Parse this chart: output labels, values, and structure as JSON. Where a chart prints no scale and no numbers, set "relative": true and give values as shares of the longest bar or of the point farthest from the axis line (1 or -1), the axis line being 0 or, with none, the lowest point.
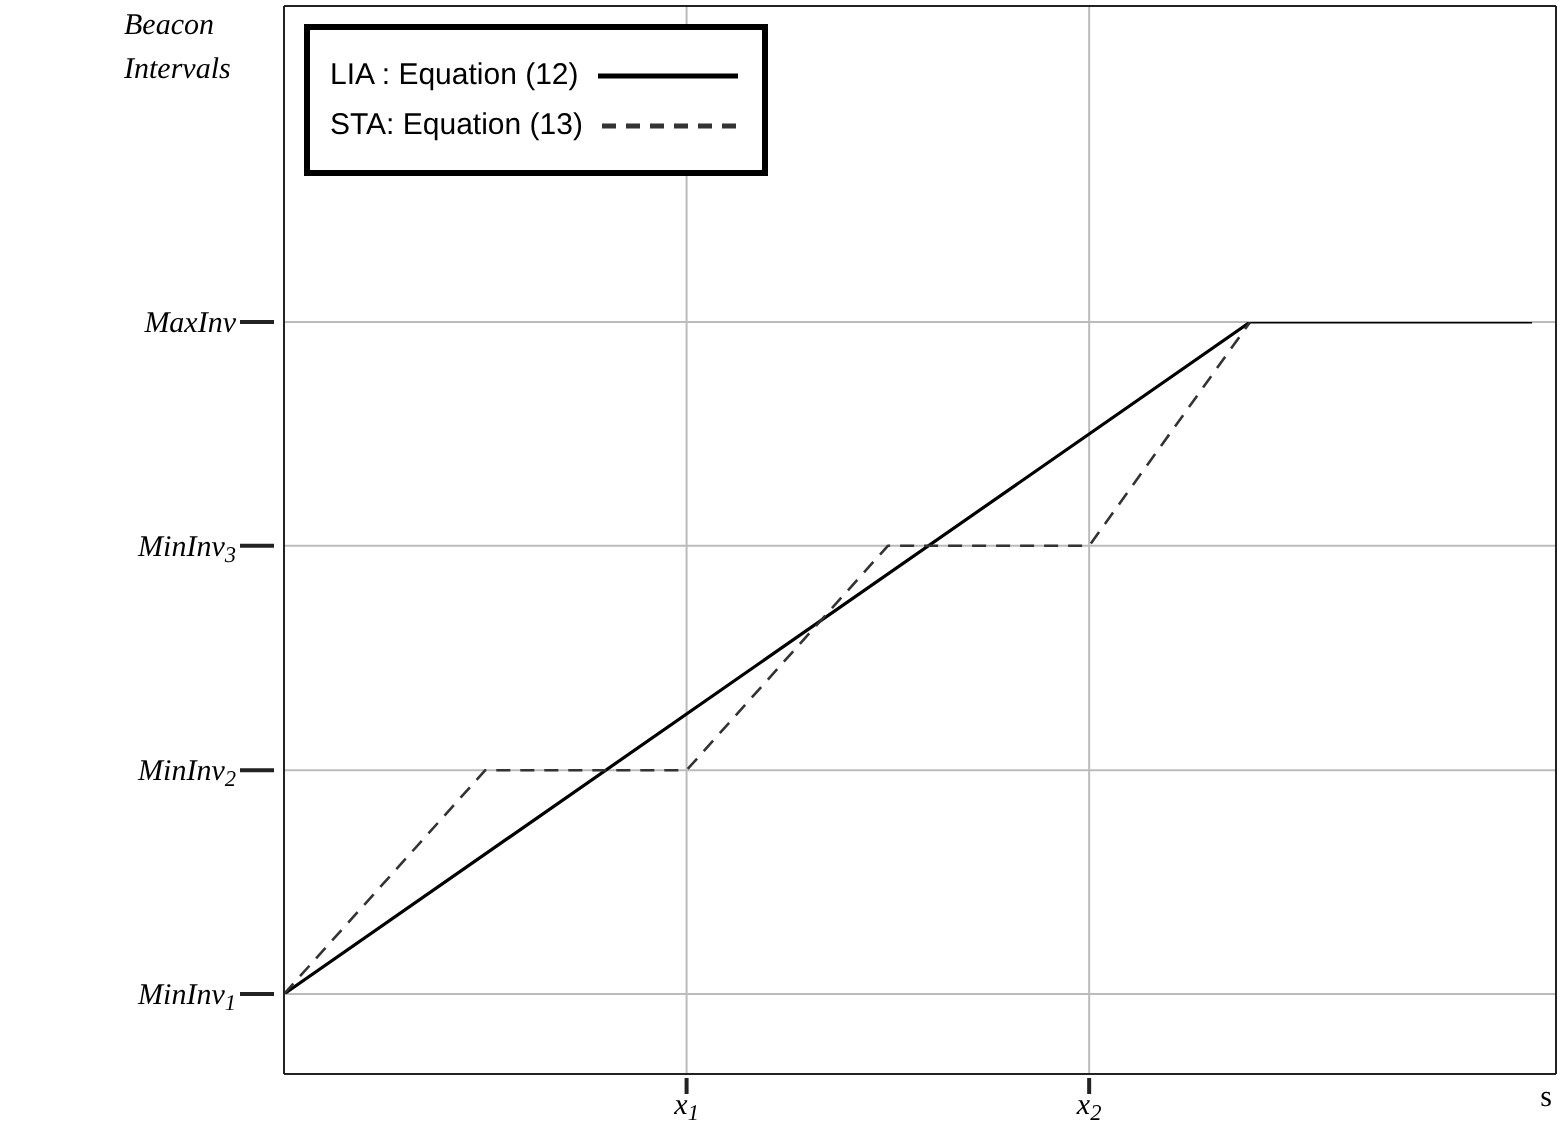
{
  "chart_data": {
    "type": "line",
    "relative": true,
    "annotations": [
      "Beacon Intervals"
    ],
    "xlabel": "s",
    "categories": [
      null,
      null,
      null,
      null,
      null,
      null,
      null,
      null,
      null,
      null,
      "x$_{1}$",
      null,
      null,
      null,
      null,
      null,
      null,
      null,
      null,
      null,
      "x$_{2}$",
      null,
      null,
      null,
      null,
      null,
      null,
      null,
      null,
      null,
      null,
      null
    ],
    "ref_lines": [
      {
        "axis": "y",
        "value": 0,
        "label": "MinInv$_{1}$"
      },
      {
        "axis": "y",
        "value": 0.333,
        "label": "MinInv$_{2}$"
      },
      {
        "axis": "y",
        "value": 0.667,
        "label": "MinInv$_{3}$"
      },
      {
        "axis": "y",
        "value": 1,
        "label": "MaxInv"
      },
      {
        "axis": "x",
        "value": "x$_{1}$"
      },
      {
        "axis": "x",
        "value": "x$_{2}$"
      }
    ],
    "legend": "top left",
    "series": [
      {
        "name": "LIA : Equation (12)",
        "color": "#000000",
        "line_style": "solid",
        "values": [
          0,
          null,
          null,
          null,
          null,
          null,
          null,
          null,
          null,
          null,
          null,
          null,
          null,
          null,
          null,
          null,
          null,
          null,
          null,
          null,
          null,
          null,
          null,
          null,
          1,
          null,
          null,
          null,
          null,
          null,
          null,
          1
        ]
      },
      {
        "name": "STA: Equation (13)",
        "color": "#333333",
        "line_style": "dashed",
        "values": [
          0,
          null,
          null,
          null,
          null,
          0.333,
          null,
          null,
          null,
          null,
          0.333,
          null,
          null,
          null,
          null,
          0.667,
          null,
          null,
          null,
          null,
          0.667,
          null,
          null,
          null,
          1,
          null,
          null,
          null,
          null,
          null,
          null,
          null
        ]
      }
    ]
  }
}
